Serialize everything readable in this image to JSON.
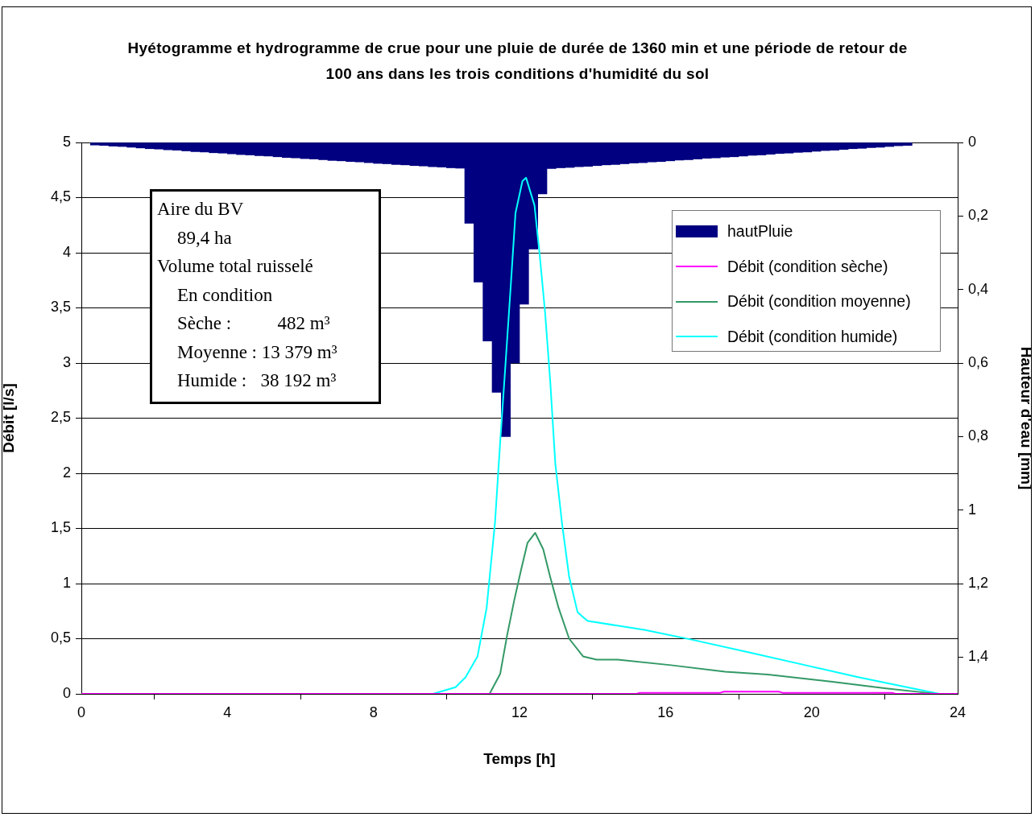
{
  "chart_data": {
    "type": "line",
    "title": "Hyétogramme et hydrogramme de crue pour une pluie de durée de 1360 min et une période de retour de 100 ans dans les trois conditions d'humidité du sol",
    "xlabel": "Temps [h]",
    "ylabel": "Débit [l/s]",
    "y2label": "Hauteur d'eau [mm]",
    "xlim": [
      0,
      24
    ],
    "xticks": [
      0,
      4,
      8,
      12,
      16,
      20,
      24
    ],
    "ylim": [
      0,
      5
    ],
    "yticks": [
      0,
      {
        "value": 0.5,
        "label": "0,5"
      },
      1,
      {
        "value": 1.5,
        "label": "1,5"
      },
      2,
      {
        "value": 2.5,
        "label": "2,5"
      },
      3,
      {
        "value": 3.5,
        "label": "3,5"
      },
      4,
      {
        "value": 4.5,
        "label": "4,5"
      },
      5
    ],
    "y2lim": [
      1.5,
      0
    ],
    "y2ticks": [
      0,
      {
        "value": 0.2,
        "label": "0,2"
      },
      {
        "value": 0.4,
        "label": "0,4"
      },
      {
        "value": 0.6,
        "label": "0,6"
      },
      {
        "value": 0.8,
        "label": "0,8"
      },
      1,
      {
        "value": 1.2,
        "label": "1,2"
      },
      {
        "value": 1.4,
        "label": "1,4"
      }
    ],
    "grid": "y",
    "legend": "top right",
    "marker": "none",
    "line_style": "solid",
    "annotations": [
      "Aire du BV",
      "89,4 ha",
      "Volume total ruisselé",
      "En condition",
      "Sèche :          482 m³",
      "Moyenne : 13 379 m³",
      "Humide :   38 192 m³"
    ],
    "series": [
      {
        "name": "hautPluie",
        "type": "bar",
        "axis": "y2",
        "color": "#000080",
        "x": [
          0.375,
          0.625,
          0.875,
          1.125,
          1.375,
          1.625,
          1.875,
          2.125,
          2.375,
          2.625,
          2.875,
          3.125,
          3.375,
          3.625,
          3.875,
          4.125,
          4.375,
          4.625,
          4.875,
          5.125,
          5.375,
          5.625,
          5.875,
          6.125,
          6.375,
          6.625,
          6.875,
          7.125,
          7.375,
          7.625,
          7.875,
          8.125,
          8.375,
          8.625,
          8.875,
          9.125,
          9.375,
          9.625,
          9.875,
          10.125,
          10.375,
          10.625,
          10.875,
          11.125,
          11.375,
          11.625,
          11.875,
          12.125,
          12.375,
          12.625,
          12.875,
          13.125,
          13.375,
          13.625,
          13.875,
          14.125,
          14.375,
          14.625,
          14.875,
          15.125,
          15.375,
          15.625,
          15.875,
          16.125,
          16.375,
          16.625,
          16.875,
          17.125,
          17.375,
          17.625,
          17.875,
          18.125,
          18.375,
          18.625,
          18.875,
          19.125,
          19.375,
          19.625,
          19.875,
          20.125,
          20.375,
          20.625,
          20.875,
          21.125,
          21.375,
          21.625,
          21.875,
          22.125,
          22.375,
          22.625
        ],
        "values": [
          0.007,
          0.008,
          0.01,
          0.011,
          0.013,
          0.015,
          0.017,
          0.018,
          0.02,
          0.021,
          0.023,
          0.025,
          0.026,
          0.028,
          0.029,
          0.031,
          0.033,
          0.034,
          0.036,
          0.037,
          0.039,
          0.041,
          0.042,
          0.044,
          0.045,
          0.047,
          0.049,
          0.05,
          0.052,
          0.053,
          0.055,
          0.057,
          0.058,
          0.06,
          0.061,
          0.063,
          0.064,
          0.066,
          0.067,
          0.069,
          0.07,
          0.22,
          0.38,
          0.54,
          0.68,
          0.8,
          0.6,
          0.44,
          0.29,
          0.14,
          0.071,
          0.069,
          0.068,
          0.066,
          0.065,
          0.063,
          0.061,
          0.06,
          0.058,
          0.056,
          0.055,
          0.053,
          0.052,
          0.05,
          0.048,
          0.047,
          0.045,
          0.043,
          0.042,
          0.04,
          0.039,
          0.037,
          0.035,
          0.034,
          0.032,
          0.03,
          0.029,
          0.027,
          0.026,
          0.024,
          0.022,
          0.021,
          0.019,
          0.017,
          0.016,
          0.014,
          0.013,
          0.011,
          0.009,
          0.008
        ]
      },
      {
        "name": "Débit (condition sèche)",
        "color": "#ff00ff",
        "x": [
          0,
          15.2,
          15.3,
          17.5,
          17.6,
          19.1,
          19.2,
          22.2,
          22.3,
          24
        ],
        "values": [
          0,
          0,
          0.01,
          0.01,
          0.02,
          0.02,
          0.01,
          0.01,
          0,
          0
        ]
      },
      {
        "name": "Débit (condition moyenne)",
        "color": "#339966",
        "x": [
          0,
          11.18,
          11.47,
          11.66,
          11.85,
          12.04,
          12.22,
          12.43,
          12.65,
          12.84,
          13.07,
          13.36,
          13.74,
          14.11,
          14.69,
          16.15,
          17.63,
          18.8,
          20.57,
          22.04,
          23.14,
          23.4,
          24
        ],
        "values": [
          0,
          0,
          0.18,
          0.53,
          0.84,
          1.12,
          1.37,
          1.46,
          1.31,
          1.06,
          0.78,
          0.5,
          0.34,
          0.31,
          0.31,
          0.26,
          0.2,
          0.175,
          0.11,
          0.05,
          0.01,
          0,
          0
        ]
      },
      {
        "name": "Débit (condition humide)",
        "color": "#00ffff",
        "x": [
          0,
          9.63,
          10.25,
          10.52,
          10.85,
          11.1,
          11.33,
          11.47,
          11.61,
          11.75,
          11.89,
          12.08,
          12.18,
          12.41,
          12.55,
          12.7,
          12.84,
          12.98,
          13.17,
          13.36,
          13.59,
          13.83,
          13.88,
          15.42,
          16.74,
          18.36,
          19.83,
          21.3,
          22.77,
          23.5,
          24
        ],
        "values": [
          0,
          0,
          0.06,
          0.15,
          0.34,
          0.78,
          1.56,
          2.28,
          2.96,
          3.65,
          4.36,
          4.65,
          4.68,
          4.43,
          3.99,
          3.46,
          2.84,
          2.09,
          1.53,
          1.06,
          0.74,
          0.67,
          0.66,
          0.58,
          0.49,
          0.37,
          0.26,
          0.15,
          0.05,
          0,
          0
        ]
      }
    ]
  }
}
